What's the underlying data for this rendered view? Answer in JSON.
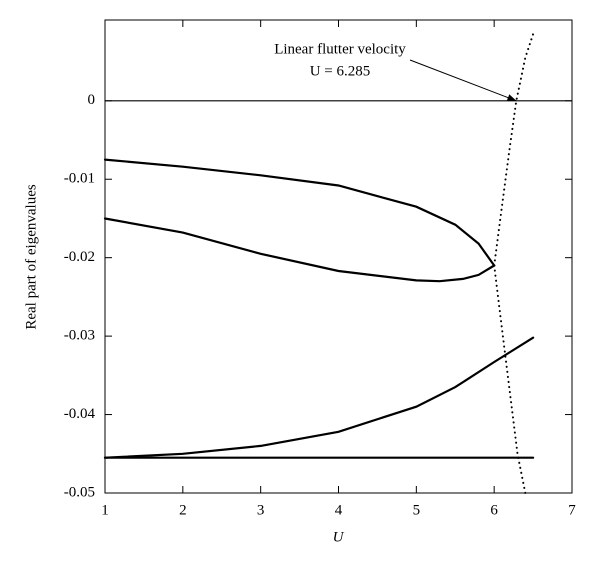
{
  "chart_data": {
    "type": "line",
    "xlabel": "U",
    "ylabel": "Real part of eigenvalues",
    "xlim": [
      1,
      7
    ],
    "ylim": [
      -0.05,
      0.0103
    ],
    "xticks": [
      1,
      2,
      3,
      4,
      5,
      6,
      7
    ],
    "yticks": [
      -0.05,
      -0.04,
      -0.03,
      -0.02,
      -0.01,
      0
    ],
    "hline": 0,
    "series": [
      {
        "color": "#000000",
        "style": "solid",
        "x": [
          1,
          2,
          3,
          4,
          5,
          5.5,
          5.8,
          6.0
        ],
        "values": [
          -0.0075,
          -0.0084,
          -0.0095,
          -0.0108,
          -0.0135,
          -0.0158,
          -0.0182,
          -0.021
        ]
      },
      {
        "color": "#000000",
        "style": "solid",
        "x": [
          1,
          2,
          3,
          4,
          5,
          5.3,
          5.6,
          5.8,
          6.0
        ],
        "values": [
          -0.015,
          -0.0168,
          -0.0195,
          -0.0217,
          -0.0229,
          -0.023,
          -0.0227,
          -0.0222,
          -0.021
        ]
      },
      {
        "color": "#000000",
        "style": "solid",
        "x": [
          1,
          2,
          3,
          4,
          5,
          5.5,
          6,
          6.5
        ],
        "values": [
          -0.0455,
          -0.045,
          -0.044,
          -0.0422,
          -0.039,
          -0.0365,
          -0.0333,
          -0.0302
        ]
      },
      {
        "color": "#000000",
        "style": "solid",
        "x": [
          1,
          6.5
        ],
        "values": [
          -0.0455,
          -0.0455
        ]
      },
      {
        "color": "#000000",
        "style": "dotted",
        "x": [
          6.0,
          6.1,
          6.2,
          6.285,
          6.4,
          6.5
        ],
        "values": [
          -0.021,
          -0.0135,
          -0.006,
          0,
          0.0055,
          0.0085
        ]
      },
      {
        "color": "#000000",
        "style": "dotted",
        "x": [
          6.0,
          6.1,
          6.2,
          6.3,
          6.4
        ],
        "values": [
          -0.021,
          -0.029,
          -0.037,
          -0.045,
          -0.05
        ]
      }
    ],
    "annotation": {
      "lines": [
        "Linear flutter velocity",
        "U = 6.285"
      ],
      "point": [
        6.285,
        0
      ]
    }
  }
}
